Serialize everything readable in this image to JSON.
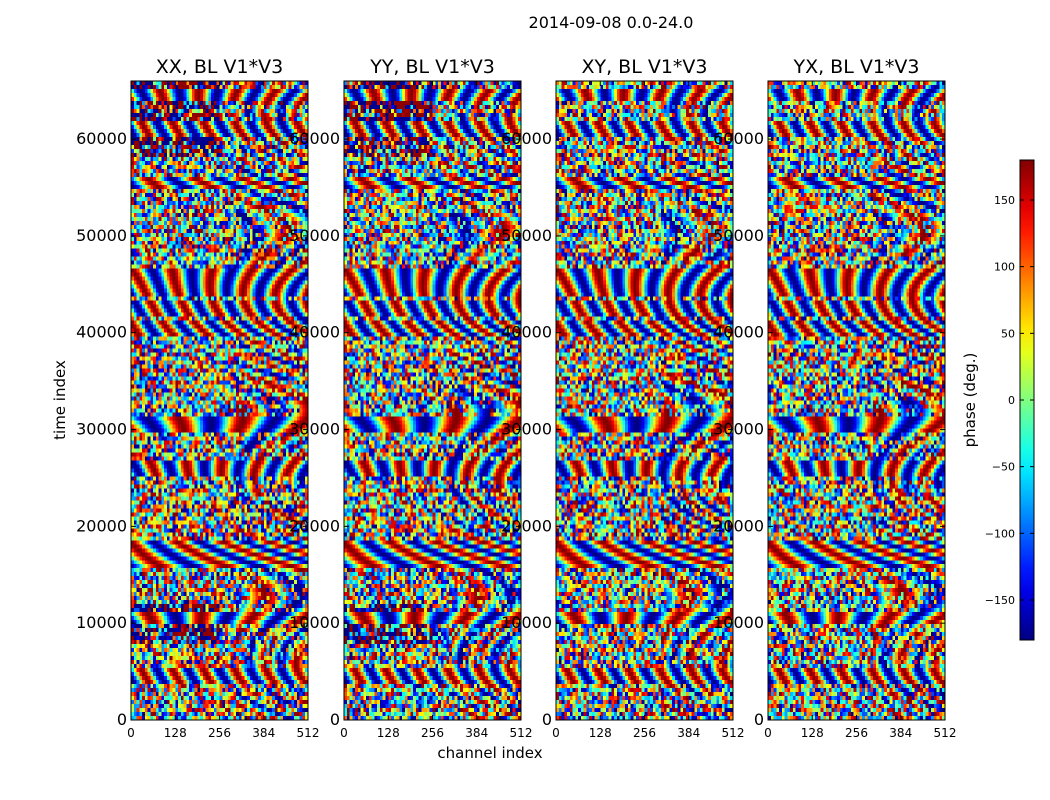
{
  "chart_data": {
    "type": "heatmap",
    "title": "2014-09-08 0.0-24.0",
    "xlabel": "channel index",
    "ylabel": "time index",
    "xlim": [
      0,
      512
    ],
    "ylim": [
      0,
      66000
    ],
    "x_ticks": [
      "0",
      "128",
      "256",
      "384",
      "512"
    ],
    "x_tick_values": [
      0,
      128,
      256,
      384,
      512
    ],
    "y_ticks": [
      "0",
      "10000",
      "20000",
      "30000",
      "40000",
      "50000",
      "60000"
    ],
    "y_tick_values": [
      0,
      10000,
      20000,
      30000,
      40000,
      50000,
      60000
    ],
    "panels": [
      {
        "title": "XX, BL V1*V3"
      },
      {
        "title": "YY, BL V1*V3"
      },
      {
        "title": "XY, BL V1*V3"
      },
      {
        "title": "YX, BL V1*V3"
      }
    ],
    "colorbar": {
      "label": "phase (deg.)",
      "range": [
        -180,
        180
      ],
      "ticks": [
        "150",
        "100",
        "50",
        "0",
        "−50",
        "−100",
        "−150"
      ],
      "tick_values": [
        150,
        100,
        50,
        0,
        -50,
        -100,
        -150
      ],
      "colormap": "jet"
    }
  }
}
